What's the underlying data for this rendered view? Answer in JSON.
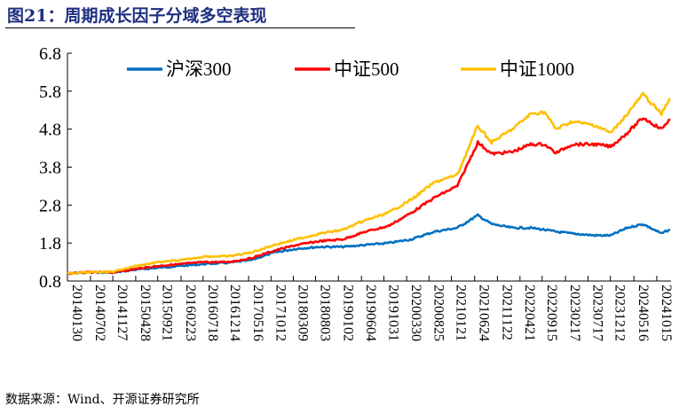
{
  "title": "图21：周期成长因子分域多空表现",
  "source": "数据来源：Wind、开源证券研究所",
  "chart_data": {
    "type": "line",
    "title": "",
    "ylim": [
      0.8,
      6.8
    ],
    "yticks": [
      "0.8",
      "1.8",
      "2.8",
      "3.8",
      "4.8",
      "5.8",
      "6.8"
    ],
    "xticks": [
      "20140130",
      "20140702",
      "20141127",
      "20150428",
      "20150921",
      "20160223",
      "20160718",
      "20161214",
      "20170516",
      "20171012",
      "20180309",
      "20180803",
      "20190102",
      "20190604",
      "20191031",
      "20200330",
      "20200825",
      "20210121",
      "20210624",
      "20211122",
      "20220421",
      "20220915",
      "20230217",
      "20230717",
      "20231212",
      "20240516",
      "20241015"
    ],
    "legend": "top",
    "grid": false,
    "x": [
      "2014-01-30",
      "2014-07-02",
      "2014-12-01",
      "2015-05-01",
      "2015-10-01",
      "2016-03-01",
      "2016-08-01",
      "2017-01-01",
      "2017-06-01",
      "2017-11-01",
      "2018-04-01",
      "2018-09-01",
      "2019-02-01",
      "2019-07-01",
      "2019-12-01",
      "2020-05-01",
      "2020-10-01",
      "2021-03-01",
      "2021-07-15",
      "2021-10-15",
      "2022-03-01",
      "2022-07-01",
      "2022-10-01",
      "2022-12-15",
      "2023-04-01",
      "2023-09-01",
      "2023-12-15",
      "2024-04-01",
      "2024-07-15",
      "2024-11-15",
      "2025-01-10"
    ],
    "series": [
      {
        "name": "沪深300",
        "color": "#0070c0",
        "values": [
          1.0,
          1.03,
          1.02,
          1.1,
          1.15,
          1.2,
          1.25,
          1.28,
          1.35,
          1.55,
          1.65,
          1.7,
          1.7,
          1.75,
          1.8,
          1.9,
          2.1,
          2.2,
          2.53,
          2.3,
          2.2,
          2.2,
          2.15,
          2.1,
          2.05,
          2.0,
          2.0,
          2.2,
          2.3,
          2.05,
          2.16
        ]
      },
      {
        "name": "中证500",
        "color": "#ff0000",
        "values": [
          1.0,
          1.03,
          1.03,
          1.12,
          1.2,
          1.25,
          1.3,
          1.3,
          1.4,
          1.6,
          1.75,
          1.85,
          1.9,
          2.1,
          2.25,
          2.6,
          3.0,
          3.3,
          4.45,
          4.15,
          4.2,
          4.4,
          4.4,
          4.17,
          4.4,
          4.4,
          4.34,
          4.7,
          5.1,
          4.8,
          5.07
        ]
      },
      {
        "name": "中证1000",
        "color": "#ffc000",
        "values": [
          1.0,
          1.03,
          1.05,
          1.2,
          1.3,
          1.35,
          1.45,
          1.45,
          1.55,
          1.75,
          1.9,
          2.05,
          2.15,
          2.4,
          2.6,
          2.95,
          3.4,
          3.6,
          4.88,
          4.45,
          4.8,
          5.2,
          5.25,
          4.8,
          5.0,
          4.9,
          4.7,
          5.2,
          5.72,
          5.2,
          5.61
        ]
      }
    ]
  }
}
